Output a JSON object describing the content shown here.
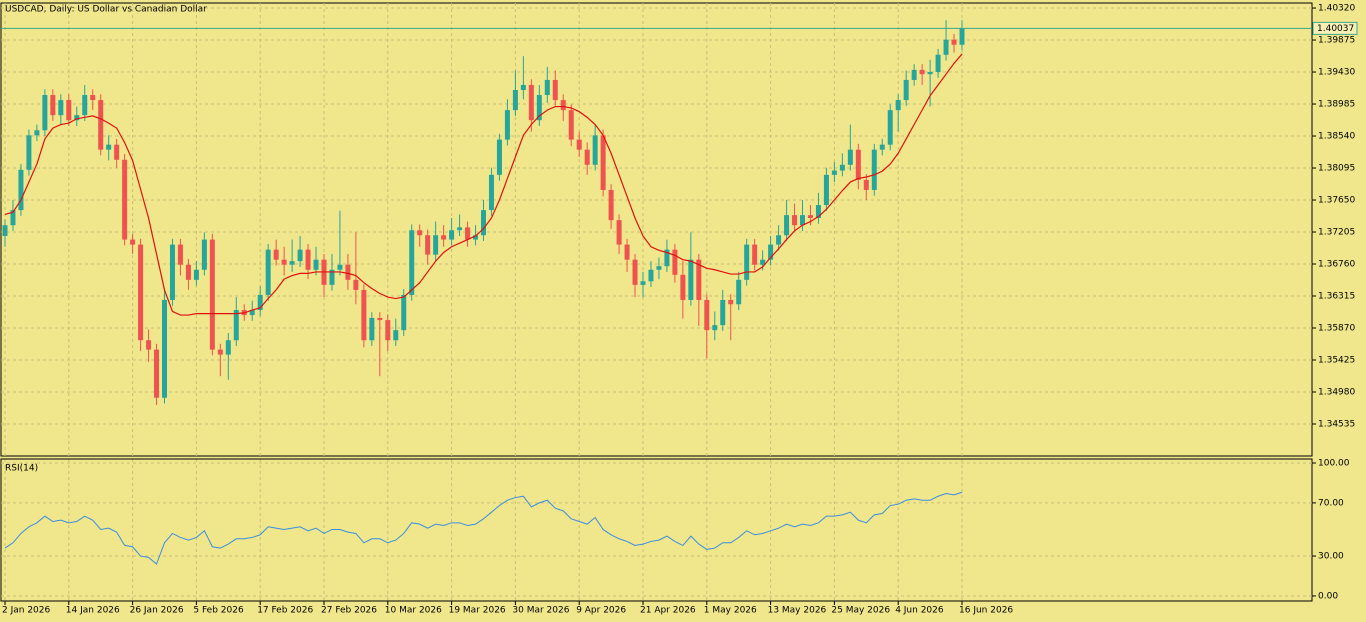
{
  "chart_data": [
    {
      "type": "candlestick",
      "title": "USDCAD, Daily:  US Dollar vs Canadian Dollar",
      "categories": [
        "2 Jan 2026",
        null,
        null,
        null,
        null,
        null,
        null,
        null,
        "14 Jan 2026",
        null,
        null,
        null,
        null,
        null,
        null,
        null,
        "26 Jan 2026",
        null,
        null,
        null,
        null,
        null,
        null,
        null,
        "5 Feb 2026",
        null,
        null,
        null,
        null,
        null,
        null,
        null,
        "17 Feb 2026",
        null,
        null,
        null,
        null,
        null,
        null,
        null,
        "27 Feb 2026",
        null,
        null,
        null,
        null,
        null,
        null,
        null,
        "10 Mar 2026",
        null,
        null,
        null,
        null,
        null,
        null,
        null,
        "19 Mar 2026",
        null,
        null,
        null,
        null,
        null,
        null,
        null,
        "30 Mar 2026",
        null,
        null,
        null,
        null,
        null,
        null,
        null,
        "9 Apr 2026",
        null,
        null,
        null,
        null,
        null,
        null,
        null,
        "21 Apr 2026",
        null,
        null,
        null,
        null,
        null,
        null,
        null,
        "1 May 2026",
        null,
        null,
        null,
        null,
        null,
        null,
        null,
        "13 May 2026",
        null,
        null,
        null,
        null,
        null,
        null,
        null,
        "25 May 2026",
        null,
        null,
        null,
        null,
        null,
        null,
        null,
        "4 Jun 2026",
        null,
        null,
        null,
        null,
        null,
        null,
        null,
        "16 Jun 2026"
      ],
      "open": [
        1.3715,
        1.373,
        1.3751,
        1.3807,
        1.3855,
        1.3862,
        1.3911,
        1.3883,
        1.3904,
        1.3876,
        1.3883,
        1.3911,
        1.3904,
        1.3835,
        1.3842,
        1.3821,
        1.371,
        1.3703,
        1.357,
        1.3557,
        1.349,
        1.3626,
        1.3703,
        1.3675,
        1.3654,
        1.3668,
        1.371,
        1.3557,
        1.355,
        1.357,
        1.3612,
        1.3605,
        1.3612,
        1.3633,
        1.3696,
        1.3682,
        1.3675,
        1.368,
        1.3696,
        1.3668,
        1.3682,
        1.3647,
        1.3668,
        1.3675,
        1.3654,
        1.364,
        1.357,
        1.3601,
        1.3598,
        1.357,
        1.3584,
        1.3633,
        1.3723,
        1.3716,
        1.3689,
        1.3716,
        1.371,
        1.3723,
        1.3727,
        1.371,
        1.3716,
        1.3751,
        1.38,
        1.3849,
        1.389,
        1.3918,
        1.3925,
        1.3876,
        1.3911,
        1.3932,
        1.3904,
        1.389,
        1.3849,
        1.3835,
        1.3814,
        1.3855,
        1.3779,
        1.3737,
        1.3703,
        1.3682,
        1.3647,
        1.3652,
        1.3668,
        1.3673,
        1.3696,
        1.3661,
        1.3626,
        1.3682,
        1.3626,
        1.3584,
        1.3591,
        1.3626,
        1.362,
        1.3654,
        1.3703,
        1.3675,
        1.3682,
        1.3703,
        1.3716,
        1.3744,
        1.373,
        1.3744,
        1.374,
        1.3758,
        1.38,
        1.3806,
        1.3814,
        1.3835,
        1.3793,
        1.3779,
        1.3835,
        1.3842,
        1.389,
        1.3904,
        1.3932,
        1.3946,
        1.394,
        1.3943,
        1.3967,
        1.3988,
        1.3981
      ],
      "high": [
        1.3738,
        1.3765,
        1.3815,
        1.3863,
        1.387,
        1.3919,
        1.3919,
        1.3912,
        1.3912,
        1.3895,
        1.3925,
        1.3919,
        1.3912,
        1.3855,
        1.385,
        1.3829,
        1.3718,
        1.3711,
        1.3585,
        1.3565,
        1.364,
        1.3711,
        1.3711,
        1.3683,
        1.368,
        1.372,
        1.3718,
        1.3565,
        1.358,
        1.363,
        1.362,
        1.3625,
        1.3645,
        1.3704,
        1.371,
        1.37,
        1.371,
        1.3715,
        1.3704,
        1.37,
        1.369,
        1.369,
        1.375,
        1.369,
        1.372,
        1.3648,
        1.3609,
        1.3609,
        1.3606,
        1.36,
        1.3641,
        1.3731,
        1.3731,
        1.3724,
        1.3735,
        1.373,
        1.374,
        1.3745,
        1.3735,
        1.373,
        1.3765,
        1.381,
        1.3857,
        1.3905,
        1.3945,
        1.3965,
        1.3933,
        1.3925,
        1.395,
        1.3945,
        1.3912,
        1.3898,
        1.386,
        1.3845,
        1.387,
        1.3863,
        1.3787,
        1.3745,
        1.3711,
        1.369,
        1.3665,
        1.368,
        1.3685,
        1.371,
        1.3704,
        1.368,
        1.372,
        1.369,
        1.3634,
        1.361,
        1.364,
        1.3634,
        1.3665,
        1.3711,
        1.3711,
        1.3695,
        1.3715,
        1.373,
        1.3765,
        1.376,
        1.3765,
        1.3758,
        1.3775,
        1.381,
        1.3818,
        1.383,
        1.387,
        1.3843,
        1.3801,
        1.3843,
        1.385,
        1.3898,
        1.3912,
        1.3945,
        1.3954,
        1.3954,
        1.396,
        1.3975,
        1.4015,
        1.3996,
        1.4015
      ],
      "low": [
        1.37,
        1.3722,
        1.3743,
        1.3799,
        1.3847,
        1.3854,
        1.3875,
        1.387,
        1.3868,
        1.3868,
        1.3875,
        1.389,
        1.3827,
        1.382,
        1.381,
        1.3702,
        1.369,
        1.3555,
        1.354,
        1.348,
        1.3482,
        1.3618,
        1.366,
        1.364,
        1.3646,
        1.366,
        1.3549,
        1.352,
        1.3515,
        1.3562,
        1.3597,
        1.3597,
        1.3604,
        1.3625,
        1.3674,
        1.366,
        1.3665,
        1.3672,
        1.3655,
        1.366,
        1.363,
        1.3639,
        1.366,
        1.364,
        1.362,
        1.356,
        1.3562,
        1.352,
        1.3555,
        1.3562,
        1.3576,
        1.3625,
        1.37,
        1.3675,
        1.3681,
        1.37,
        1.3702,
        1.3715,
        1.37,
        1.3702,
        1.3708,
        1.3743,
        1.3792,
        1.3841,
        1.3882,
        1.3905,
        1.386,
        1.3868,
        1.39,
        1.3896,
        1.3875,
        1.384,
        1.3825,
        1.38,
        1.3806,
        1.377,
        1.3725,
        1.369,
        1.3665,
        1.363,
        1.363,
        1.3644,
        1.3655,
        1.3665,
        1.365,
        1.36,
        1.3618,
        1.359,
        1.3545,
        1.357,
        1.3583,
        1.357,
        1.3612,
        1.3646,
        1.3667,
        1.3667,
        1.3674,
        1.3695,
        1.3708,
        1.3722,
        1.3722,
        1.373,
        1.3732,
        1.375,
        1.379,
        1.3798,
        1.3806,
        1.378,
        1.3765,
        1.3771,
        1.3827,
        1.3834,
        1.386,
        1.3896,
        1.3924,
        1.3925,
        1.3895,
        1.3935,
        1.3959,
        1.397,
        1.3973
      ],
      "close": [
        1.373,
        1.3751,
        1.3807,
        1.3855,
        1.3862,
        1.3911,
        1.3883,
        1.3904,
        1.3876,
        1.3883,
        1.3911,
        1.3904,
        1.3835,
        1.3842,
        1.3821,
        1.371,
        1.3703,
        1.357,
        1.3557,
        1.349,
        1.3626,
        1.3703,
        1.3675,
        1.3654,
        1.3668,
        1.371,
        1.3557,
        1.355,
        1.357,
        1.3612,
        1.3605,
        1.3612,
        1.3633,
        1.3696,
        1.3682,
        1.3675,
        1.368,
        1.3696,
        1.3668,
        1.3682,
        1.3647,
        1.3668,
        1.3675,
        1.3654,
        1.364,
        1.357,
        1.3601,
        1.3598,
        1.357,
        1.3584,
        1.3633,
        1.3723,
        1.3716,
        1.3689,
        1.3716,
        1.371,
        1.3723,
        1.3727,
        1.371,
        1.3716,
        1.3751,
        1.38,
        1.3849,
        1.389,
        1.3918,
        1.3925,
        1.3876,
        1.3911,
        1.3932,
        1.3904,
        1.389,
        1.3849,
        1.3835,
        1.3814,
        1.3855,
        1.3779,
        1.3737,
        1.3703,
        1.3682,
        1.3647,
        1.3652,
        1.3668,
        1.3673,
        1.3696,
        1.3661,
        1.3626,
        1.3682,
        1.3626,
        1.3584,
        1.3591,
        1.3626,
        1.362,
        1.3654,
        1.3703,
        1.3675,
        1.3682,
        1.3703,
        1.3716,
        1.3744,
        1.373,
        1.3744,
        1.374,
        1.3758,
        1.38,
        1.3806,
        1.3814,
        1.3835,
        1.3793,
        1.3779,
        1.3835,
        1.3842,
        1.389,
        1.3904,
        1.3932,
        1.3946,
        1.394,
        1.3943,
        1.3967,
        1.3988,
        1.3981,
        1.40037
      ],
      "up_color": "#26a69a",
      "down_color": "#ef5350",
      "overlays": [
        {
          "color": "#e01010",
          "values": [
            1.3745,
            1.3748,
            1.3765,
            1.379,
            1.3815,
            1.385,
            1.3865,
            1.387,
            1.3872,
            1.3878,
            1.388,
            1.3882,
            1.3878,
            1.3872,
            1.3865,
            1.3845,
            1.382,
            1.378,
            1.374,
            1.369,
            1.364,
            1.361,
            1.3605,
            1.3605,
            1.3607,
            1.3607,
            1.3607,
            1.3607,
            1.3607,
            1.3607,
            1.3608,
            1.3612,
            1.3615,
            1.3628,
            1.364,
            1.3655,
            1.366,
            1.3663,
            1.3663,
            1.3665,
            1.3665,
            1.3665,
            1.3665,
            1.3663,
            1.366,
            1.365,
            1.3642,
            1.3635,
            1.363,
            1.3628,
            1.363,
            1.364,
            1.365,
            1.3665,
            1.368,
            1.3692,
            1.37,
            1.3705,
            1.371,
            1.3715,
            1.3725,
            1.374,
            1.3765,
            1.3795,
            1.3825,
            1.3855,
            1.387,
            1.3882,
            1.389,
            1.3895,
            1.3895,
            1.3893,
            1.3888,
            1.388,
            1.387,
            1.3855,
            1.383,
            1.38,
            1.377,
            1.374,
            1.3715,
            1.37,
            1.3695,
            1.3692,
            1.3688,
            1.3682,
            1.368,
            1.3675,
            1.367,
            1.3668,
            1.3665,
            1.3662,
            1.3662,
            1.3665,
            1.3665,
            1.3672,
            1.3685,
            1.3697,
            1.371,
            1.3722,
            1.373,
            1.3735,
            1.3742,
            1.3752,
            1.3765,
            1.3778,
            1.379,
            1.3795,
            1.3797,
            1.38,
            1.3805,
            1.3815,
            1.383,
            1.385,
            1.387,
            1.389,
            1.391,
            1.3925,
            1.394,
            1.3955,
            1.3968
          ]
        }
      ],
      "current_price": 1.40037,
      "current_price_color": "#3aa88c",
      "ylim": [
        1.3409,
        1.4039
      ],
      "yticks": [
        {
          "value": 1.4032,
          "label": "1.40320"
        },
        1.39875,
        {
          "value": 1.3943,
          "label": "1.39430"
        },
        1.38985,
        {
          "value": 1.3854,
          "label": "1.38540"
        },
        1.38095,
        {
          "value": 1.3765,
          "label": "1.37650"
        },
        1.37205,
        {
          "value": 1.3676,
          "label": "1.36760"
        },
        1.36315,
        {
          "value": 1.3587,
          "label": "1.35870"
        },
        1.35425,
        {
          "value": 1.3498,
          "label": "1.34980"
        },
        1.34535
      ],
      "grid": true
    },
    {
      "type": "line",
      "title": "RSI(14)",
      "series": [
        {
          "color": "#3a8ee0",
          "values": [
            36,
            40,
            47,
            52,
            55,
            60,
            56,
            57,
            55,
            56,
            60,
            57,
            50,
            51,
            48,
            38,
            37,
            30,
            29,
            24,
            40,
            47,
            44,
            42,
            44,
            49,
            37,
            36,
            39,
            43,
            43,
            44,
            46,
            52,
            51,
            50,
            51,
            52,
            49,
            51,
            47,
            50,
            50,
            48,
            47,
            40,
            43,
            43,
            40,
            42,
            47,
            55,
            54,
            51,
            54,
            53,
            55,
            55,
            53,
            54,
            58,
            63,
            68,
            72,
            74,
            75,
            67,
            70,
            72,
            66,
            64,
            58,
            56,
            54,
            59,
            50,
            46,
            43,
            41,
            38,
            39,
            41,
            42,
            45,
            41,
            38,
            45,
            39,
            35,
            36,
            40,
            40,
            44,
            49,
            46,
            47,
            49,
            51,
            54,
            52,
            54,
            53,
            55,
            60,
            60,
            61,
            63,
            57,
            55,
            61,
            62,
            68,
            69,
            72,
            73,
            72,
            72,
            75,
            77,
            76,
            78
          ]
        }
      ],
      "ylim": [
        -3.8,
        103
      ],
      "yticks": [
        {
          "value": 100,
          "label": "100.00"
        },
        {
          "value": 70,
          "label": "70.00"
        },
        {
          "value": 30,
          "label": "30.00"
        },
        {
          "value": 0,
          "label": "0.00"
        }
      ],
      "grid": true
    }
  ]
}
